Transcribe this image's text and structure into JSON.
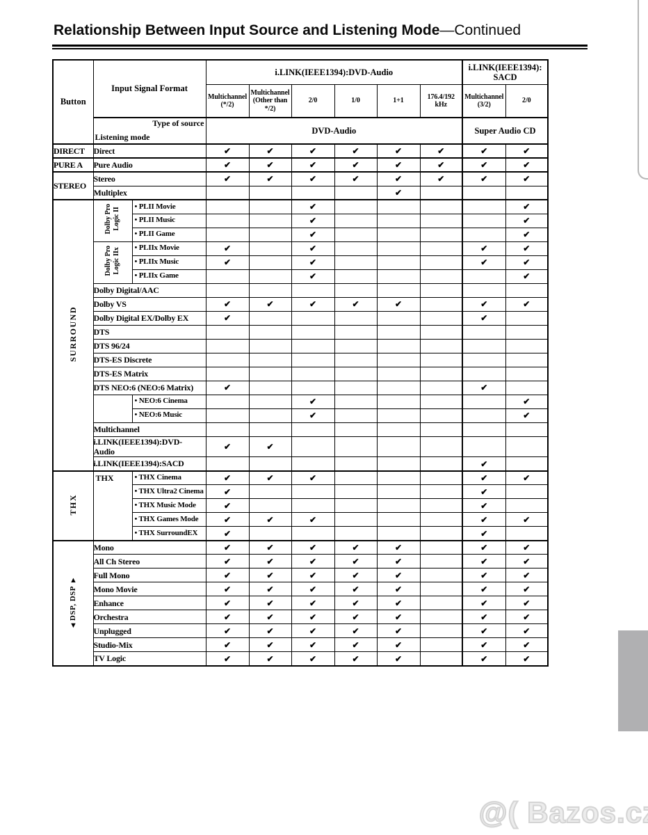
{
  "page": {
    "title_bold": "Relationship Between Input Source and Listening Mode",
    "title_rest": "—Continued",
    "watermark": "@( Bazos.cz"
  },
  "table": {
    "checkmark": "✔",
    "header": {
      "button": "Button",
      "input_signal_format": "Input Signal Format",
      "dvd_group": "i.LINK(IEEE1394):DVD-Audio",
      "sacd_group": "i.LINK(IEEE1394):\nSACD",
      "subcols": [
        "Multichannel\n(*/2)",
        "Multichannel\n(Other than\n*/2)",
        "2/0",
        "1/0",
        "1+1",
        "176.4/192\nkHz",
        "Multichannel\n(3/2)",
        "2/0"
      ],
      "type_of_source": "Type of source",
      "listening_mode": "Listening mode",
      "dvd_source": "DVD-Audio",
      "sacd_source": "Super Audio CD"
    },
    "rows": [
      {
        "button": {
          "label": "DIRECT"
        },
        "label": "Direct",
        "checks": [
          1,
          1,
          1,
          1,
          1,
          1,
          1,
          1
        ],
        "thick": true
      },
      {
        "button": {
          "label": "PURE A"
        },
        "label": "Pure Audio",
        "checks": [
          1,
          1,
          1,
          1,
          1,
          1,
          1,
          1
        ],
        "thick": true
      },
      {
        "button": {
          "label": "STEREO",
          "rowspan": 2
        },
        "label": "Stereo",
        "checks": [
          1,
          1,
          1,
          1,
          1,
          1,
          1,
          1
        ],
        "thick": true
      },
      {
        "label": "Multiplex",
        "checks": [
          0,
          0,
          0,
          0,
          1,
          0,
          0,
          0
        ]
      },
      {
        "button": {
          "label": "SURROUND",
          "rowspan": 19,
          "vertical": true
        },
        "sub": {
          "label": "Dolby Pro\nLogic II",
          "rowspan": 3,
          "rotated": true
        },
        "label": "• PLII Movie",
        "checks": [
          0,
          0,
          1,
          0,
          0,
          0,
          0,
          1
        ],
        "thick": true
      },
      {
        "label": "• PLII Music",
        "checks": [
          0,
          0,
          1,
          0,
          0,
          0,
          0,
          1
        ]
      },
      {
        "label": "• PLII Game",
        "checks": [
          0,
          0,
          1,
          0,
          0,
          0,
          0,
          1
        ]
      },
      {
        "sub": {
          "label": "Dolby Pro\nLogic IIx",
          "rowspan": 3,
          "rotated": true
        },
        "label": "• PLIIx Movie",
        "checks": [
          1,
          0,
          1,
          0,
          0,
          0,
          1,
          1
        ]
      },
      {
        "label": "• PLIIx Music",
        "checks": [
          1,
          0,
          1,
          0,
          0,
          0,
          1,
          1
        ]
      },
      {
        "label": "• PLIIx Game",
        "checks": [
          0,
          0,
          1,
          0,
          0,
          0,
          0,
          1
        ]
      },
      {
        "label": "Dolby Digital/AAC",
        "checks": [
          0,
          0,
          0,
          0,
          0,
          0,
          0,
          0
        ]
      },
      {
        "label": "Dolby VS",
        "checks": [
          1,
          1,
          1,
          1,
          1,
          0,
          1,
          1
        ]
      },
      {
        "label": "Dolby Digital EX/Dolby EX",
        "checks": [
          1,
          0,
          0,
          0,
          0,
          0,
          1,
          0
        ]
      },
      {
        "label": "DTS",
        "checks": [
          0,
          0,
          0,
          0,
          0,
          0,
          0,
          0
        ]
      },
      {
        "label": "DTS 96/24",
        "checks": [
          0,
          0,
          0,
          0,
          0,
          0,
          0,
          0
        ]
      },
      {
        "label": "DTS-ES Discrete",
        "checks": [
          0,
          0,
          0,
          0,
          0,
          0,
          0,
          0
        ]
      },
      {
        "label": "DTS-ES Matrix",
        "checks": [
          0,
          0,
          0,
          0,
          0,
          0,
          0,
          0
        ]
      },
      {
        "label": "DTS NEO:6 (NEO:6 Matrix)",
        "checks": [
          1,
          0,
          0,
          0,
          0,
          0,
          1,
          0
        ]
      },
      {
        "sub": {
          "label": "",
          "rowspan": 2
        },
        "label": "• NEO:6 Cinema",
        "checks": [
          0,
          0,
          1,
          0,
          0,
          0,
          0,
          1
        ]
      },
      {
        "label": "• NEO:6 Music",
        "checks": [
          0,
          0,
          1,
          0,
          0,
          0,
          0,
          1
        ]
      },
      {
        "label": "Multichannel",
        "checks": [
          0,
          0,
          0,
          0,
          0,
          0,
          0,
          0
        ]
      },
      {
        "label": "i.LINK(IEEE1394):DVD-\nAudio",
        "checks": [
          1,
          1,
          0,
          0,
          0,
          0,
          0,
          0
        ]
      },
      {
        "label": "i.LINK(IEEE1394):SACD",
        "checks": [
          0,
          0,
          0,
          0,
          0,
          0,
          1,
          0
        ]
      },
      {
        "button": {
          "label": "THX",
          "rowspan": 5,
          "vertical": true
        },
        "sub": {
          "label": "THX",
          "rowspan": 5,
          "top": true
        },
        "label": "• THX Cinema",
        "checks": [
          1,
          1,
          1,
          0,
          0,
          0,
          1,
          1
        ],
        "thick": true
      },
      {
        "label": "• THX Ultra2 Cinema",
        "checks": [
          1,
          0,
          0,
          0,
          0,
          0,
          1,
          0
        ]
      },
      {
        "label": "• THX Music Mode",
        "checks": [
          1,
          0,
          0,
          0,
          0,
          0,
          1,
          0
        ]
      },
      {
        "label": "• THX Games Mode",
        "checks": [
          1,
          1,
          1,
          0,
          0,
          0,
          1,
          1
        ]
      },
      {
        "label": "• THX SurroundEX",
        "checks": [
          1,
          0,
          0,
          0,
          0,
          0,
          1,
          0
        ]
      },
      {
        "button": {
          "label": "DSP, DSP",
          "rowspan": 9,
          "vertical": true,
          "arrows": true
        },
        "label": "Mono",
        "checks": [
          1,
          1,
          1,
          1,
          1,
          0,
          1,
          1
        ],
        "thick": true
      },
      {
        "label": "All Ch Stereo",
        "checks": [
          1,
          1,
          1,
          1,
          1,
          0,
          1,
          1
        ]
      },
      {
        "label": "Full Mono",
        "checks": [
          1,
          1,
          1,
          1,
          1,
          0,
          1,
          1
        ]
      },
      {
        "label": "Mono Movie",
        "checks": [
          1,
          1,
          1,
          1,
          1,
          0,
          1,
          1
        ]
      },
      {
        "label": "Enhance",
        "checks": [
          1,
          1,
          1,
          1,
          1,
          0,
          1,
          1
        ]
      },
      {
        "label": "Orchestra",
        "checks": [
          1,
          1,
          1,
          1,
          1,
          0,
          1,
          1
        ]
      },
      {
        "label": "Unplugged",
        "checks": [
          1,
          1,
          1,
          1,
          1,
          0,
          1,
          1
        ]
      },
      {
        "label": "Studio-Mix",
        "checks": [
          1,
          1,
          1,
          1,
          1,
          0,
          1,
          1
        ]
      },
      {
        "label": "TV Logic",
        "checks": [
          1,
          1,
          1,
          1,
          1,
          0,
          1,
          1
        ]
      }
    ]
  }
}
